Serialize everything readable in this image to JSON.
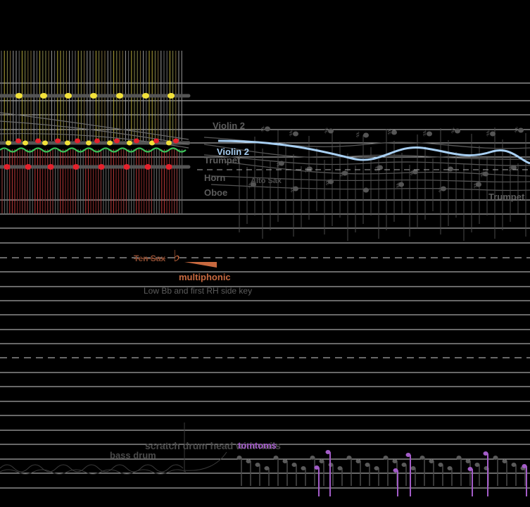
{
  "score": {
    "labels": {
      "violin2_upper": "Violin 2",
      "violin2_highlight": "Violin 2",
      "trumpet_left": "Trumpet",
      "horn": "Horn",
      "oboe": "Oboe",
      "alto_sax": "Alto Sax",
      "trumpet_right": "Trumpet",
      "ten_sax": "Ten Sax",
      "multiphonic": "multiphonic",
      "fingering_note": "Low Bb and first RH side key",
      "bass_drum": "bass drum",
      "scratch_note": "scratch drum head with nails",
      "tomtoms": "tomtoms"
    },
    "glyphs": {
      "flat": "♭",
      "sharp": "♯"
    },
    "colors": {
      "background": "#000000",
      "staff_line": "#cfcfcf",
      "yellow_notes": "#f2e23a",
      "red_notes": "#e5212c",
      "green_wave": "#3cc25a",
      "violin_highlight": "#a8cff2",
      "ten_sax_accent": "#c8693f",
      "tomtoms": "#a35cc8",
      "dim_text": "#5c5c5c"
    }
  }
}
